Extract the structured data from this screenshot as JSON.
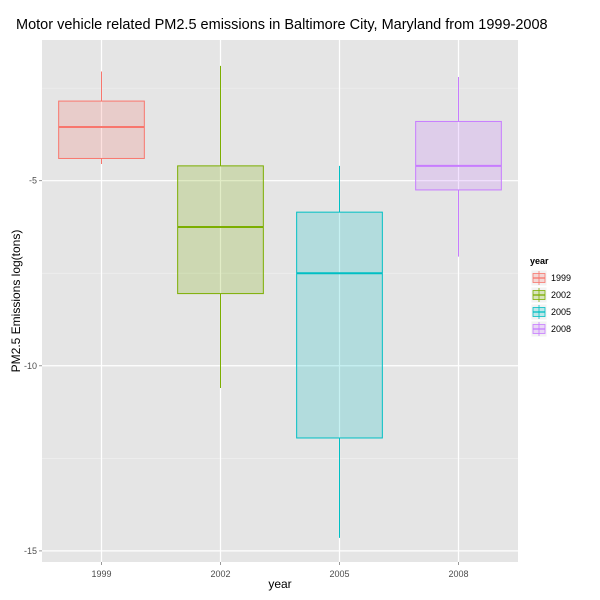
{
  "chart_data": {
    "type": "boxplot",
    "title": "Motor vehicle related PM2.5 emissions in Baltimore City, Maryland from 1999-2008",
    "xlabel": "year",
    "ylabel": "PM2.5 Emissions log(tons)",
    "categories": [
      "1999",
      "2002",
      "2005",
      "2008"
    ],
    "ylim": [
      -15.3,
      -1.2
    ],
    "yticks": [
      -15,
      -10,
      -5
    ],
    "ytick_labels": [
      "-15",
      "-10",
      "-5"
    ],
    "grid": true,
    "legend": {
      "title": "year",
      "placement": "right",
      "entries": [
        "1999",
        "2002",
        "2005",
        "2008"
      ]
    },
    "boxes": [
      {
        "category": "1999",
        "color": "#F8766D",
        "whisker_low": -4.55,
        "q1": -4.4,
        "median": -3.55,
        "q3": -2.85,
        "whisker_high": -2.05
      },
      {
        "category": "2002",
        "color": "#7CAE00",
        "whisker_low": -10.6,
        "q1": -8.05,
        "median": -6.25,
        "q3": -4.6,
        "whisker_high": -1.9
      },
      {
        "category": "2005",
        "color": "#00BFC4",
        "whisker_low": -14.65,
        "q1": -11.95,
        "median": -7.5,
        "q3": -5.85,
        "whisker_high": -4.6
      },
      {
        "category": "2008",
        "color": "#C77CFF",
        "whisker_low": -7.05,
        "q1": -5.25,
        "median": -4.6,
        "q3": -3.4,
        "whisker_high": -2.2
      }
    ]
  }
}
